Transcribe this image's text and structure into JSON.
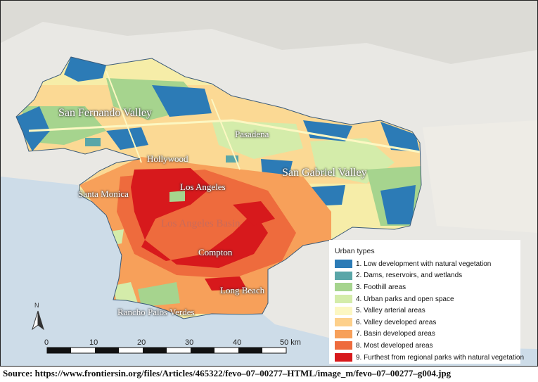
{
  "map": {
    "cities": [
      {
        "name": "San Fernando Valley"
      },
      {
        "name": "Pasadena"
      },
      {
        "name": "Hollywood"
      },
      {
        "name": "San Gabriel Valley"
      },
      {
        "name": "Santa Monica"
      },
      {
        "name": "Los Angeles"
      },
      {
        "name": "Los Angeles Basin"
      },
      {
        "name": "Compton"
      },
      {
        "name": "Long Beach"
      },
      {
        "name": "Rancho Palos Verdes"
      }
    ],
    "north_arrow": "N",
    "scale_bar": {
      "ticks": [
        "0",
        "10",
        "20",
        "30",
        "40",
        "50 km"
      ]
    }
  },
  "legend": {
    "title": "Urban types",
    "items": [
      {
        "label": "1. Low development with natural vegetation",
        "color": "#2c7bb6"
      },
      {
        "label": "2. Dams, reservoirs, and wetlands",
        "color": "#5aa6a8"
      },
      {
        "label": "3. Foothill areas",
        "color": "#a6d48e"
      },
      {
        "label": "4. Urban parks and open space",
        "color": "#d4ecaa"
      },
      {
        "label": "5. Valley arterial areas",
        "color": "#fcf7c2"
      },
      {
        "label": "6. Valley developed areas",
        "color": "#fdd08b"
      },
      {
        "label": "7. Basin developed areas",
        "color": "#f7a05a"
      },
      {
        "label": "8. Most developed areas",
        "color": "#ee6b3d"
      },
      {
        "label": "9. Furthest from regional parks with natural vegetation",
        "color": "#d7191c"
      }
    ]
  },
  "source": "Source: https://www.frontiersin.org/files/Articles/465322/fevo–07–00277–HTML/image_m/fevo–07–00277–g004.jpg"
}
